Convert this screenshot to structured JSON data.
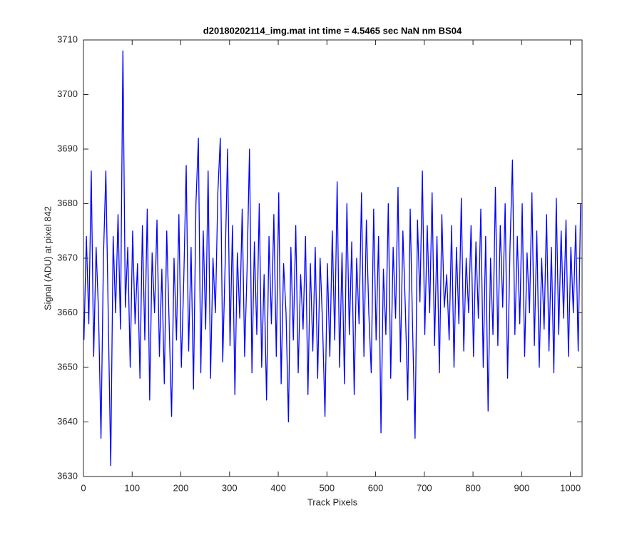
{
  "chart_data": {
    "type": "line",
    "title": "d20180202114_img.mat int time = 4.5465 sec  NaN nm BS04",
    "x_label": "Track Pixels",
    "y_label": "Signal (ADU) at pixel 842",
    "color": "#0000ff",
    "xlim": [
      0,
      1024
    ],
    "ylim": [
      3630,
      3710
    ],
    "xticks": [
      0,
      100,
      200,
      300,
      400,
      500,
      600,
      700,
      800,
      900,
      1000
    ],
    "yticks": [
      3630,
      3640,
      3650,
      3660,
      3670,
      3680,
      3690,
      3700,
      3710
    ],
    "x": [
      1,
      6,
      11,
      16,
      21,
      26,
      31,
      36,
      41,
      46,
      51,
      56,
      61,
      66,
      71,
      76,
      81,
      86,
      91,
      96,
      101,
      106,
      111,
      116,
      121,
      126,
      131,
      136,
      141,
      146,
      151,
      156,
      161,
      166,
      171,
      176,
      181,
      186,
      191,
      196,
      201,
      206,
      211,
      216,
      221,
      226,
      231,
      236,
      241,
      246,
      251,
      256,
      261,
      266,
      271,
      276,
      281,
      286,
      291,
      296,
      301,
      306,
      311,
      316,
      321,
      326,
      331,
      336,
      341,
      346,
      351,
      356,
      361,
      366,
      371,
      376,
      381,
      386,
      391,
      396,
      401,
      406,
      411,
      416,
      421,
      426,
      431,
      436,
      441,
      446,
      451,
      456,
      461,
      466,
      471,
      476,
      481,
      486,
      491,
      496,
      501,
      506,
      511,
      516,
      521,
      526,
      531,
      536,
      541,
      546,
      551,
      556,
      561,
      566,
      571,
      576,
      581,
      586,
      591,
      596,
      601,
      606,
      611,
      616,
      621,
      626,
      631,
      636,
      641,
      646,
      651,
      656,
      661,
      666,
      671,
      676,
      681,
      686,
      691,
      696,
      701,
      706,
      711,
      716,
      721,
      726,
      731,
      736,
      741,
      746,
      751,
      756,
      761,
      766,
      771,
      776,
      781,
      786,
      791,
      796,
      801,
      806,
      811,
      816,
      821,
      826,
      831,
      836,
      841,
      846,
      851,
      856,
      861,
      866,
      871,
      876,
      881,
      886,
      891,
      896,
      901,
      906,
      911,
      916,
      921,
      926,
      931,
      936,
      941,
      946,
      951,
      956,
      961,
      966,
      971,
      976,
      981,
      986,
      991,
      996,
      1001,
      1006,
      1011,
      1016,
      1021
    ],
    "values": [
      3655,
      3674,
      3658,
      3686,
      3652,
      3672,
      3660,
      3637,
      3670,
      3686,
      3659,
      3632,
      3674,
      3660,
      3678,
      3657,
      3708,
      3661,
      3672,
      3650,
      3675,
      3658,
      3669,
      3648,
      3676,
      3655,
      3679,
      3644,
      3671,
      3660,
      3677,
      3652,
      3668,
      3647,
      3675,
      3658,
      3641,
      3670,
      3655,
      3678,
      3650,
      3666,
      3687,
      3653,
      3672,
      3646,
      3680,
      3692,
      3649,
      3675,
      3657,
      3686,
      3648,
      3670,
      3660,
      3682,
      3692,
      3651,
      3669,
      3690,
      3654,
      3676,
      3645,
      3671,
      3659,
      3679,
      3652,
      3668,
      3690,
      3649,
      3673,
      3656,
      3680,
      3650,
      3667,
      3644,
      3674,
      3658,
      3678,
      3652,
      3682,
      3647,
      3669,
      3660,
      3640,
      3672,
      3655,
      3676,
      3649,
      3667,
      3657,
      3674,
      3645,
      3669,
      3653,
      3672,
      3648,
      3670,
      3658,
      3641,
      3669,
      3652,
      3675,
      3655,
      3684,
      3650,
      3671,
      3647,
      3680,
      3656,
      3673,
      3645,
      3670,
      3658,
      3682,
      3652,
      3677,
      3660,
      3649,
      3679,
      3655,
      3674,
      3638,
      3668,
      3656,
      3680,
      3648,
      3672,
      3659,
      3683,
      3651,
      3675,
      3661,
      3644,
      3679,
      3657,
      3637,
      3677,
      3662,
      3686,
      3656,
      3676,
      3660,
      3682,
      3654,
      3674,
      3649,
      3678,
      3661,
      3667,
      3655,
      3676,
      3650,
      3672,
      3658,
      3681,
      3653,
      3670,
      3660,
      3676,
      3652,
      3673,
      3659,
      3679,
      3650,
      3674,
      3642,
      3670,
      3656,
      3683,
      3654,
      3676,
      3661,
      3680,
      3648,
      3672,
      3688,
      3656,
      3674,
      3658,
      3680,
      3652,
      3671,
      3660,
      3682,
      3654,
      3675,
      3650,
      3670,
      3657,
      3678,
      3653,
      3672,
      3649,
      3681,
      3656,
      3675,
      3659,
      3677,
      3652,
      3672,
      3660,
      3676,
      3653,
      3680
    ]
  }
}
